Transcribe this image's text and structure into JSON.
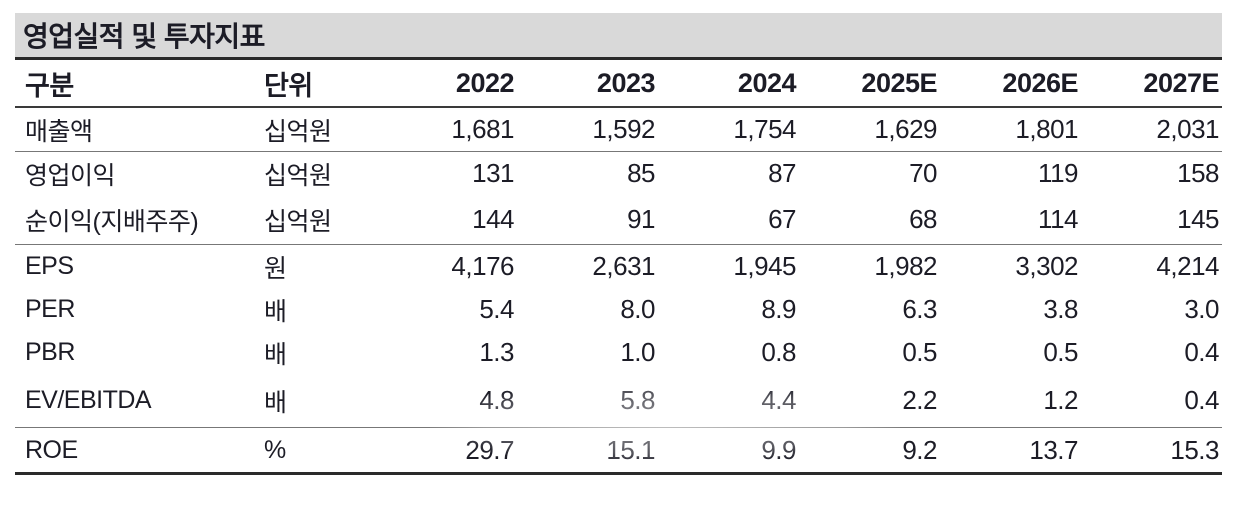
{
  "title": "영업실적 및 투자지표",
  "table": {
    "columns": [
      {
        "label": "구분",
        "align": "left"
      },
      {
        "label": "단위",
        "align": "left"
      },
      {
        "label": "2022",
        "align": "right"
      },
      {
        "label": "2023",
        "align": "right"
      },
      {
        "label": "2024",
        "align": "right"
      },
      {
        "label": "2025E",
        "align": "right"
      },
      {
        "label": "2026E",
        "align": "right"
      },
      {
        "label": "2027E",
        "align": "right"
      }
    ],
    "rows": [
      {
        "label": "매출액",
        "unit": "십억원",
        "values": [
          "1,681",
          "1,592",
          "1,754",
          "1,629",
          "1,801",
          "2,031"
        ],
        "separator_above": false
      },
      {
        "label": "영업이익",
        "unit": "십억원",
        "values": [
          "131",
          "85",
          "87",
          "70",
          "119",
          "158"
        ],
        "separator_above": true
      },
      {
        "label": "순이익(지배주주)",
        "unit": "십억원",
        "values": [
          "144",
          "91",
          "67",
          "68",
          "114",
          "145"
        ],
        "separator_above": false
      },
      {
        "label": "EPS",
        "unit": "원",
        "values": [
          "4,176",
          "2,631",
          "1,945",
          "1,982",
          "3,302",
          "4,214"
        ],
        "separator_above": true
      },
      {
        "label": "PER",
        "unit": "배",
        "values": [
          "5.4",
          "8.0",
          "8.9",
          "6.3",
          "3.8",
          "3.0"
        ],
        "separator_above": false
      },
      {
        "label": "PBR",
        "unit": "배",
        "values": [
          "1.3",
          "1.0",
          "0.8",
          "0.5",
          "0.5",
          "0.4"
        ],
        "separator_above": false
      },
      {
        "label": "EV/EBITDA",
        "unit": "배",
        "values": [
          "4.8",
          "5.8",
          "4.4",
          "2.2",
          "1.2",
          "0.4"
        ],
        "separator_above": false
      },
      {
        "label": "ROE",
        "unit": "%",
        "values": [
          "29.7",
          "15.1",
          "9.9",
          "9.2",
          "13.7",
          "15.3"
        ],
        "separator_above": true
      }
    ]
  },
  "colors": {
    "title_bar_bg": "#d9d9d9",
    "text": "#1c1c26",
    "heavy_rule": "#2a2a2a",
    "header_rule": "#3a3a3a",
    "group_rule": "#777777"
  }
}
